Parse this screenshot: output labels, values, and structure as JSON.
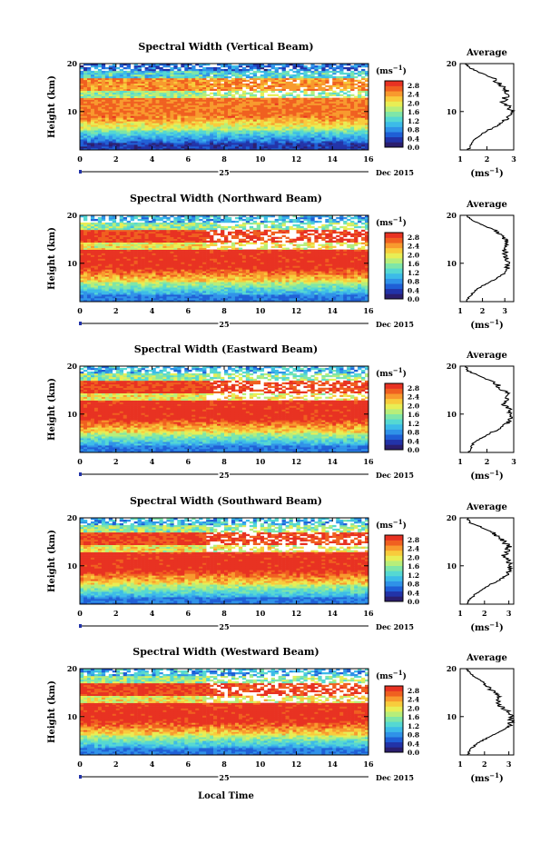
{
  "page": {
    "xlabel": "Local Time",
    "date_label": "Dec 2015",
    "day_label": "25"
  },
  "colorbar": {
    "unit": "(ms",
    "unit_exp": "−1",
    "unit_close": ")",
    "ticks": [
      "2.8",
      "2.4",
      "2.0",
      "1.6",
      "1.2",
      "0.8",
      "0.4",
      "0.0"
    ],
    "colors": [
      "#2b1e6e",
      "#2233a8",
      "#1f5fd6",
      "#2f92e8",
      "#3cbbe8",
      "#55d8d2",
      "#7fe6a8",
      "#b7ee7a",
      "#e8ee55",
      "#f8cc3c",
      "#f89a2e",
      "#f06020",
      "#e83222"
    ]
  },
  "avg_panel": {
    "title": "Average",
    "xlabel": "(ms",
    "xlabel_exp": "−1",
    "xlabel_close": ")"
  },
  "chart_data": [
    {
      "type": "heatmap",
      "title": "Spectral Width (Vertical Beam)",
      "ylabel": "Height (km)",
      "xticks": [
        "0",
        "2",
        "4",
        "6",
        "8",
        "10",
        "12",
        "14",
        "16"
      ],
      "yticks": [
        "20",
        "10"
      ],
      "xlim": [
        0,
        16
      ],
      "ylim": [
        2,
        20
      ],
      "colorbar_range": [
        0.0,
        3.0
      ],
      "average_profile": {
        "xticks": [
          "1",
          "2",
          "3"
        ],
        "xlim": [
          1,
          3
        ],
        "height": [
          2,
          3,
          4,
          5,
          6,
          7,
          8,
          9,
          10,
          11,
          12,
          13,
          14,
          15,
          16,
          17,
          18,
          19,
          20
        ],
        "width": [
          1.3,
          1.4,
          1.5,
          1.7,
          2.0,
          2.4,
          2.6,
          2.8,
          2.9,
          2.8,
          2.6,
          2.7,
          2.8,
          2.6,
          2.4,
          2.2,
          1.8,
          1.4,
          1.2
        ]
      }
    },
    {
      "type": "heatmap",
      "title": "Spectral Width (Northward Beam)",
      "ylabel": "Height (km)",
      "xticks": [
        "0",
        "2",
        "4",
        "6",
        "8",
        "10",
        "12",
        "14",
        "16"
      ],
      "yticks": [
        "20",
        "10"
      ],
      "xlim": [
        0,
        16
      ],
      "ylim": [
        2,
        20
      ],
      "colorbar_range": [
        0.0,
        3.0
      ],
      "average_profile": {
        "xticks": [
          "1",
          "2",
          "3"
        ],
        "xlim": [
          1,
          3.4
        ],
        "height": [
          2,
          3,
          4,
          5,
          6,
          7,
          8,
          9,
          10,
          11,
          12,
          13,
          14,
          15,
          16,
          17,
          18,
          19,
          20
        ],
        "width": [
          1.3,
          1.4,
          1.6,
          1.9,
          2.3,
          2.7,
          3.0,
          3.1,
          3.2,
          3.1,
          3.0,
          3.0,
          3.1,
          3.0,
          2.8,
          2.5,
          2.0,
          1.5,
          1.3
        ]
      }
    },
    {
      "type": "heatmap",
      "title": "Spectral Width (Eastward Beam)",
      "ylabel": "Height (km)",
      "xticks": [
        "0",
        "2",
        "4",
        "6",
        "8",
        "10",
        "12",
        "14",
        "16"
      ],
      "yticks": [
        "20",
        "10"
      ],
      "xlim": [
        0,
        16
      ],
      "ylim": [
        2,
        20
      ],
      "colorbar_range": [
        0.0,
        3.0
      ],
      "average_profile": {
        "xticks": [
          "1",
          "2",
          "3"
        ],
        "xlim": [
          1,
          3
        ],
        "height": [
          2,
          3,
          4,
          5,
          6,
          7,
          8,
          9,
          10,
          11,
          12,
          13,
          14,
          15,
          16,
          17,
          18,
          19,
          20
        ],
        "width": [
          1.3,
          1.4,
          1.5,
          1.8,
          2.1,
          2.5,
          2.7,
          2.9,
          2.9,
          2.8,
          2.6,
          2.7,
          2.8,
          2.6,
          2.4,
          2.1,
          1.7,
          1.3,
          1.2
        ]
      }
    },
    {
      "type": "heatmap",
      "title": "Spectral Width (Southward Beam)",
      "ylabel": "Height (km)",
      "xticks": [
        "0",
        "2",
        "4",
        "6",
        "8",
        "10",
        "12",
        "14",
        "16"
      ],
      "yticks": [
        "20",
        "10"
      ],
      "xlim": [
        0,
        16
      ],
      "ylim": [
        2,
        20
      ],
      "colorbar_range": [
        0.0,
        3.0
      ],
      "average_profile": {
        "xticks": [
          "1",
          "2",
          "3"
        ],
        "xlim": [
          1,
          3.2
        ],
        "height": [
          2,
          3,
          4,
          5,
          6,
          7,
          8,
          9,
          10,
          11,
          12,
          13,
          14,
          15,
          16,
          17,
          18,
          19,
          20
        ],
        "width": [
          1.3,
          1.4,
          1.6,
          1.9,
          2.2,
          2.6,
          2.9,
          3.0,
          3.1,
          3.0,
          2.8,
          2.9,
          3.0,
          2.8,
          2.6,
          2.3,
          1.9,
          1.4,
          1.3
        ]
      }
    },
    {
      "type": "heatmap",
      "title": "Spectral Width (Westward Beam)",
      "ylabel": "Height (km)",
      "xticks": [
        "0",
        "2",
        "4",
        "6",
        "8",
        "10",
        "12",
        "14",
        "16"
      ],
      "yticks": [
        "20",
        "10"
      ],
      "xlim": [
        0,
        16
      ],
      "ylim": [
        2,
        20
      ],
      "colorbar_range": [
        0.0,
        3.0
      ],
      "average_profile": {
        "xticks": [
          "1",
          "2",
          "3"
        ],
        "xlim": [
          1,
          3.2
        ],
        "height": [
          2,
          3,
          4,
          5,
          6,
          7,
          8,
          9,
          10,
          11,
          12,
          13,
          14,
          15,
          16,
          17,
          18,
          19,
          20
        ],
        "width": [
          1.3,
          1.4,
          1.6,
          1.9,
          2.3,
          2.7,
          3.0,
          3.1,
          3.1,
          3.0,
          2.7,
          2.5,
          2.6,
          2.4,
          2.2,
          2.0,
          1.7,
          1.4,
          1.3
        ]
      }
    }
  ]
}
